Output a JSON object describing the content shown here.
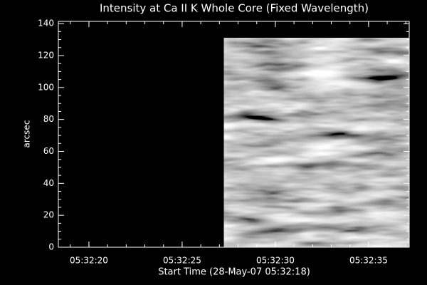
{
  "chart_data": {
    "type": "image",
    "title": "Intensity at Ca II K Whole Core (Fixed Wavelength)",
    "x_label": "Start Time (28-May-07 05:32:18)",
    "y_label": "arcsec",
    "xlim": [
      0.36,
      19.18
    ],
    "xticks": [
      {
        "value": 2,
        "label": "05:32:20"
      },
      {
        "value": 7,
        "label": "05:32:25"
      },
      {
        "value": 12,
        "label": "05:32:30"
      },
      {
        "value": 17,
        "label": "05:32:35"
      }
    ],
    "ylim": [
      0,
      141.4
    ],
    "yticks": [
      0,
      20,
      40,
      60,
      80,
      100,
      120,
      140
    ],
    "image_extent": {
      "x": [
        9.25,
        19.18
      ],
      "y": [
        0,
        131
      ]
    },
    "background": "#000000",
    "axis_color": "#ffffff"
  }
}
